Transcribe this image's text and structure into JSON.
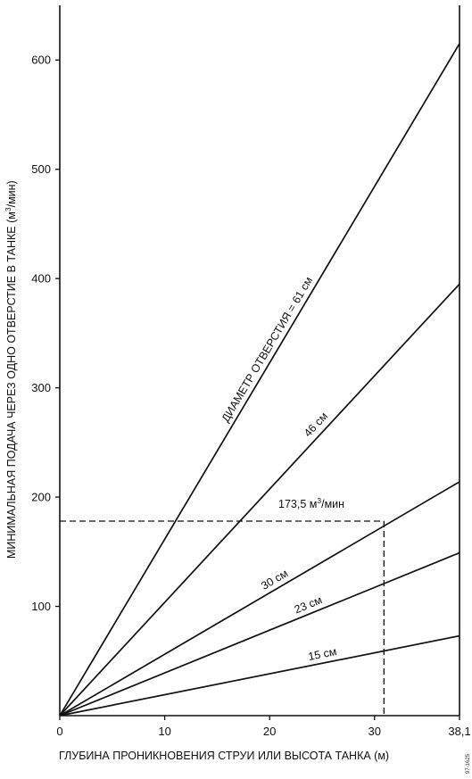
{
  "chart_data": {
    "type": "line",
    "xlabel": "ГЛУБИНА ПРОНИКНОВЕНИЯ СТРУИ ИЛИ ВЫСОТА ТАНКА (м)",
    "ylabel_main": "МИНИМАЛЬНАЯ ПОДАЧА ЧЕРЕЗ ОДНО ОТВЕРСТИЕ В ТАНКЕ (м",
    "ylabel_sup": "3",
    "ylabel_end": "/мин)",
    "xlim": [
      0,
      38.1
    ],
    "ylim": [
      0,
      650
    ],
    "x_ticks": [
      0,
      10,
      20,
      30,
      38.1
    ],
    "x_tick_labels": [
      "0",
      "10",
      "20",
      "30",
      "38,1"
    ],
    "y_ticks": [
      100,
      200,
      300,
      400,
      500,
      600
    ],
    "y_tick_labels": [
      "100",
      "200",
      "300",
      "400",
      "500",
      "600"
    ],
    "grid": false,
    "series": [
      {
        "name": "ДИАМЕТР ОТВЕРСТИЯ = 61 см",
        "x": [
          0,
          38.1
        ],
        "y": [
          0,
          615
        ]
      },
      {
        "name": "46 см",
        "x": [
          0,
          38.1
        ],
        "y": [
          0,
          395
        ]
      },
      {
        "name": "30 см",
        "x": [
          0,
          38.1
        ],
        "y": [
          0,
          214
        ]
      },
      {
        "name": "23 см",
        "x": [
          0,
          38.1
        ],
        "y": [
          0,
          149
        ]
      },
      {
        "name": "15 см",
        "x": [
          0,
          38.1
        ],
        "y": [
          0,
          73
        ]
      }
    ],
    "annotation": {
      "text": "173,5 м",
      "sup": "3",
      "text_end": "/мин",
      "x": 30.9,
      "y": 178
    },
    "footnote": "97-1625"
  }
}
